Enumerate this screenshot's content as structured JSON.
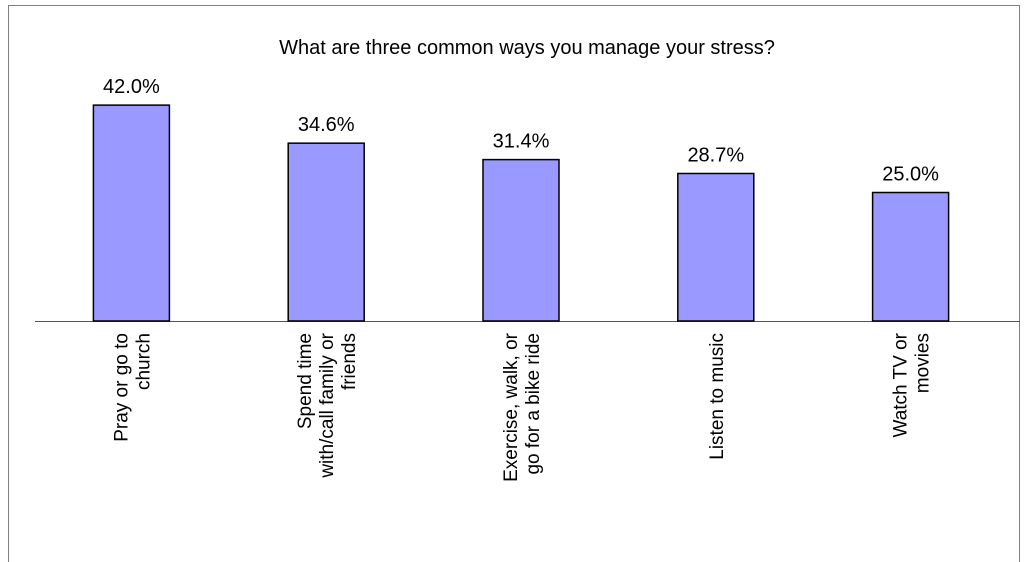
{
  "chart_data": {
    "type": "bar",
    "title": "What are three common ways you manage your stress?",
    "categories": [
      "Pray or go to church",
      "Spend time with/call family or friends",
      "Exercise, walk, or go for a bike ride",
      "Listen to music",
      "Watch TV or movies"
    ],
    "values": [
      42.0,
      34.6,
      31.4,
      28.7,
      25.0
    ],
    "value_labels": [
      "42.0%",
      "34.6%",
      "31.4%",
      "28.7%",
      "25.0%"
    ],
    "color": "#9999ff",
    "ylim": [
      0,
      50
    ]
  }
}
